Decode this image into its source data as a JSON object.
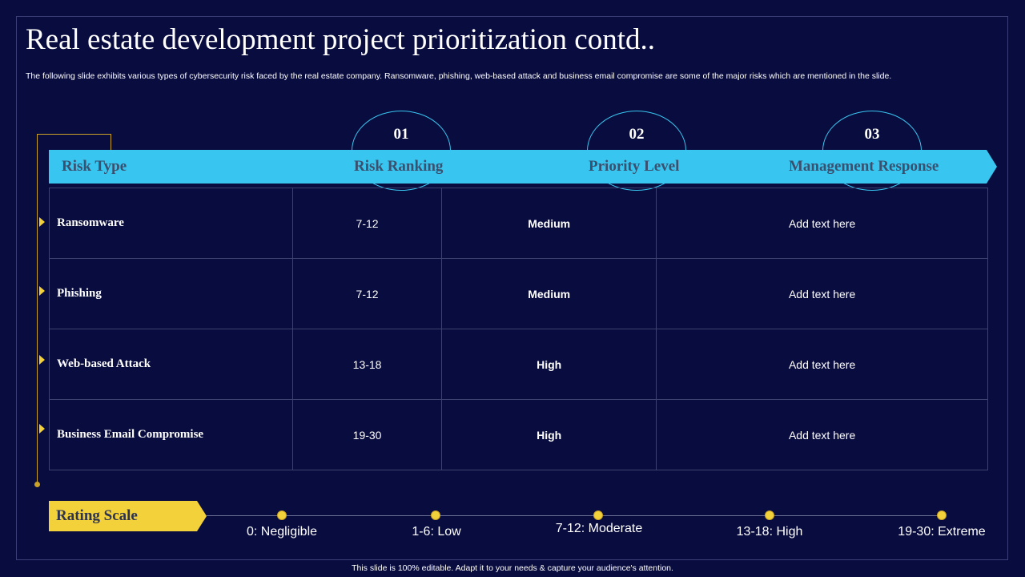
{
  "title": "Real estate development project prioritization contd..",
  "subtitle": "The following slide exhibits various types of cybersecurity risk faced by the real estate company. Ransomware, phishing, web-based attack and business email compromise are some of the major risks which are mentioned in the slide.",
  "steps": [
    "01",
    "02",
    "03"
  ],
  "headers": [
    "Risk Type",
    "Risk Ranking",
    "Priority Level",
    "Management Response"
  ],
  "rows": [
    {
      "type": "Ransomware",
      "ranking": "7-12",
      "priority": "Medium",
      "response": "Add text here"
    },
    {
      "type": "Phishing",
      "ranking": "7-12",
      "priority": "Medium",
      "response": "Add text here"
    },
    {
      "type": "Web-based Attack",
      "ranking": "13-18",
      "priority": "High",
      "response": "Add text here"
    },
    {
      "type": "Business Email Compromise",
      "ranking": "19-30",
      "priority": "High",
      "response": "Add text here"
    }
  ],
  "rating_scale": {
    "label": "Rating Scale",
    "levels": [
      "0: Negligible",
      "1-6: Low",
      "7-12: Moderate",
      "13-18: High",
      "19-30: Extreme"
    ]
  },
  "footer": "This slide is 100% editable.  Adapt it to your needs & capture your audience's attention.",
  "colors": {
    "background": "#090c3e",
    "banner": "#38c6f0",
    "accent_gold": "#f2d13a",
    "medium": "#1db64a",
    "high": "#e3150f"
  }
}
